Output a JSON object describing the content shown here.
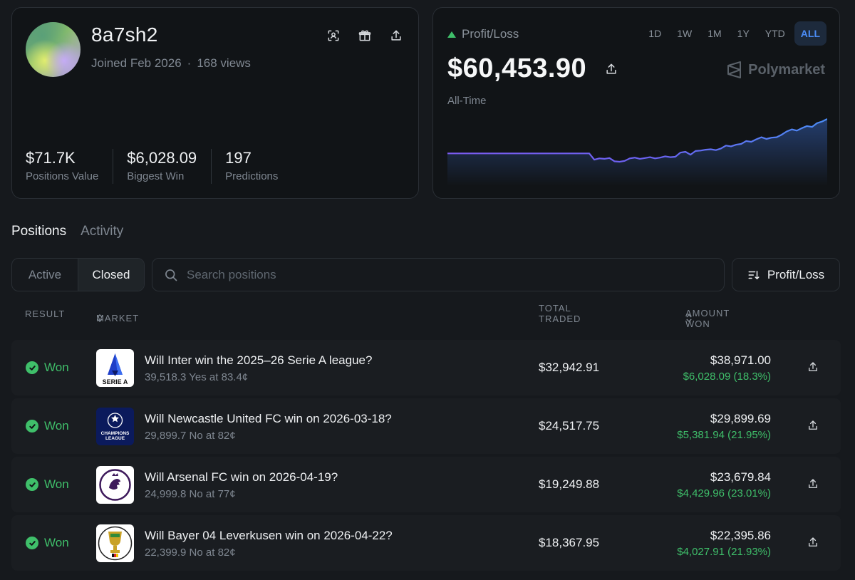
{
  "profile": {
    "username": "8a7sh2",
    "joined": "Joined Feb 2026",
    "separator": "·",
    "views": "168 views",
    "icons": [
      "scan-icon",
      "gift-icon",
      "share-icon"
    ],
    "stats": [
      {
        "value": "$71.7K",
        "label": "Positions Value"
      },
      {
        "value": "$6,028.09",
        "label": "Biggest Win"
      },
      {
        "value": "197",
        "label": "Predictions"
      }
    ]
  },
  "pnl": {
    "label": "Profit/Loss",
    "amount": "$60,453.90",
    "period": "All-Time",
    "brand": "Polymarket",
    "ranges": [
      "1D",
      "1W",
      "1M",
      "1Y",
      "YTD",
      "ALL"
    ],
    "active_range": "ALL",
    "colors": {
      "up": "#3fbf6a",
      "line_start": "#7c5cf2",
      "line_end": "#4b8cf5"
    }
  },
  "chart_data": {
    "type": "area",
    "title": "",
    "xlabel": "",
    "ylabel": "",
    "grid": false,
    "x_range": "All-Time",
    "values": [
      0,
      0,
      0,
      0,
      0,
      0,
      0,
      0,
      0,
      0,
      0,
      0,
      0,
      0,
      0,
      0,
      0,
      0,
      0,
      0,
      0,
      0,
      0,
      0,
      0,
      0,
      0,
      0,
      0,
      -1500,
      -1200,
      -1300,
      -1100,
      -1900,
      -2000,
      -1800,
      -1200,
      -1000,
      -1300,
      -1100,
      -900,
      -1200,
      -1000,
      -700,
      -900,
      -800,
      200,
      400,
      -300,
      600,
      700,
      900,
      1000,
      800,
      1200,
      1900,
      1700,
      2100,
      2300,
      3000,
      2800,
      3400,
      3900,
      3500,
      3800,
      3900,
      4500,
      5300,
      5800,
      5500,
      6100,
      6600,
      6400,
      7300,
      7700,
      8300
    ]
  },
  "tabs": {
    "items": [
      {
        "label": "Positions",
        "active": true
      },
      {
        "label": "Activity",
        "active": false
      }
    ]
  },
  "filters": {
    "segments": [
      {
        "label": "Active",
        "active": false
      },
      {
        "label": "Closed",
        "active": true
      }
    ],
    "search_placeholder": "Search positions",
    "sort_label": "Profit/Loss"
  },
  "table": {
    "headers": {
      "result": "RESULT",
      "market": "MARKET",
      "traded": "TOTAL TRADED",
      "won": "AMOUNT WON"
    },
    "rows": [
      {
        "result": "Won",
        "logo": "serie-a-logo",
        "title": "Will Inter win the 2025–26 Serie A league?",
        "sub": "39,518.3 Yes at 83.4¢",
        "traded": "$32,942.91",
        "won": "$38,971.00",
        "pnl": "$6,028.09 (18.3%)"
      },
      {
        "result": "Won",
        "logo": "champions-league-logo",
        "title": "Will Newcastle United FC win on 2026-03-18?",
        "sub": "29,899.7 No at 82¢",
        "traded": "$24,517.75",
        "won": "$29,899.69",
        "pnl": "$5,381.94 (21.95%)"
      },
      {
        "result": "Won",
        "logo": "premier-league-logo",
        "title": "Will Arsenal FC win on 2026-04-19?",
        "sub": "24,999.8 No at 77¢",
        "traded": "$19,249.88",
        "won": "$23,679.84",
        "pnl": "$4,429.96 (23.01%)"
      },
      {
        "result": "Won",
        "logo": "dfb-pokal-logo",
        "title": "Will Bayer 04 Leverkusen win on 2026-04-22?",
        "sub": "22,399.9 No at 82¢",
        "traded": "$18,367.95",
        "won": "$22,395.86",
        "pnl": "$4,027.91 (21.93%)"
      }
    ]
  },
  "logos": {
    "serie_a_text": "SERIE A",
    "champions_text_1": "CHAMPIONS",
    "champions_text_2": "LEAGUE"
  }
}
